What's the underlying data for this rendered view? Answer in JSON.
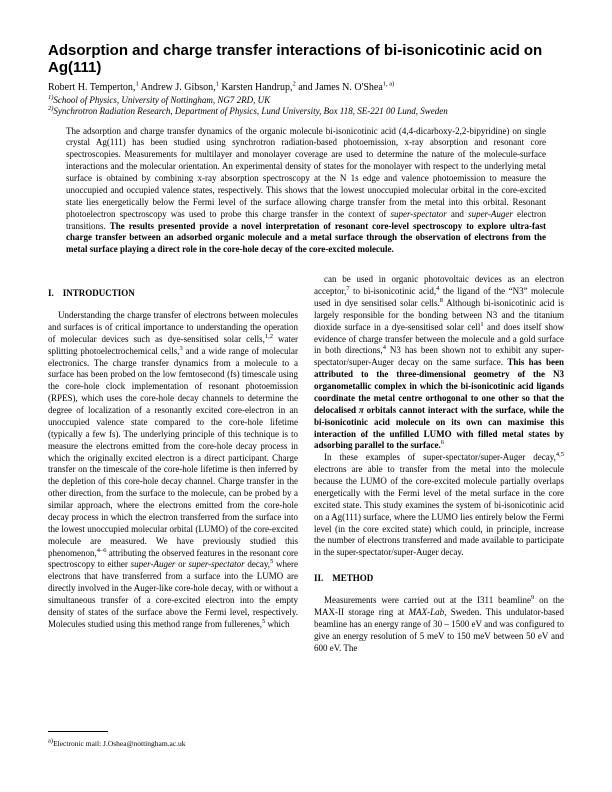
{
  "title": "Adsorption and charge transfer interactions of bi-isonicotinic acid on Ag(111)",
  "authors_html": "Robert H. Temperton,<sup>1</sup> Andrew J. Gibson,<sup>1</sup> Karsten Handrup,<sup>2</sup> and James N. O'Shea<sup>1, a)</sup>",
  "affil_html": "<sup>1)</sup>School of Physics, University of Nottingham, NG7 2RD, UK<br><sup>2)</sup>Synchrotron Radiation Research, Department of Physics, Lund University, Box 118, SE-221 00 Lund, Sweden",
  "abstract_html": "The adsorption and charge transfer dynamics of the organic molecule bi-isonicotinic acid (4,4-dicarboxy-2,2-bipyridine) on single crystal Ag(111) has been studied using synchrotron radiation-based photoemission, x-ray absorption and resonant core spectroscopies. Measurements for multilayer and monolayer coverage are used to determine the nature of the molecule-surface interactions and the molecular orientation. An experimental density of states for the monolayer with respect to the underlying metal surface is obtained by combining x-ray absorption spectroscopy at the N 1s edge and valence photoemission to measure the unoccupied and occupied valence states, respectively. This shows that the lowest unoccupied molecular orbital in the core-excited state lies energetically below the Fermi level of the surface allowing charge transfer from the metal into this orbital. Resonant photoelectron spectroscopy was used to probe this charge transfer in the context of <i>super-spectator</i> and <i>super-Auger</i> electron transitions. <b>The results presented provide a novel interpretation of resonant core-level spectroscopy to explore ultra-fast charge transfer between an adsorbed organic molecule and a metal surface through the observation of electrons from the metal surface playing a direct role in the core-hole decay of the core-excited molecule.</b>",
  "sec1_head": "I. INTRODUCTION",
  "col1_p1_html": "Understanding the charge transfer of electrons between molecules and surfaces is of critical importance to understanding the operation of molecular devices such as dye-sensitised solar cells,<sup>1,2</sup> water splitting photoelectrochemical cells,<sup>3</sup> and a wide range of molecular electronics. The charge transfer dynamics from a molecule to a surface has been probed on the low femtosecond (fs) timescale using the core-hole clock implementation of resonant photoemission (RPES), which uses the core-hole decay channels to determine the degree of localization of a resonantly excited core-electron in an unoccupied valence state compared to the core-hole lifetime (typically a few fs). The underlying principle of this technique is to measure the electrons emitted from the core-hole decay process in which the originally excited electron is a direct participant. Charge transfer on the timescale of the core-hole lifetime is then inferred by the depletion of this core-hole decay channel. Charge transfer in the other direction, from the surface to the molecule, can be probed by a similar approach, where the electrons emitted from the core-hole decay process in which the electron transferred from the surface into the lowest unoccupied molecular orbital (LUMO) of the core-excited molecule are measured. We have previously studied this phenomenon,<sup>4–6</sup> attributing the observed features in the resonant core spectroscopy to either <i>super-Auger</i> or <i>super-spectator</i> decay,<sup>5</sup> where electrons that have transferred from a surface into the LUMO are directly involved in the Auger-like core-hole decay, with or without a simultaneous transfer of a core-excited electron into the empty density of states of the surface above the Fermi level, respectively. Molecules studied using this method range from fullerenes,<sup>5</sup> which",
  "col2_p1_html": "can be used in organic photovoltaic devices as an electron acceptor,<sup>7</sup> to bi-isonicotinic acid,<sup>4</sup> the ligand of the “N3” molecule used in dye sensitised solar cells.<sup>8</sup> Although bi-isonicotinic acid is largely responsible for the bonding between N3 and the titanium dioxide surface in a dye-sensitised solar cell<sup>1</sup> and does itself show evidence of charge transfer between the molecule and a gold surface in both directions,<sup>4</sup> N3 has been shown not to exhibit any super-spectator/super-Auger decay on the same surface. <b>This has been attributed to the three-dimensional geometry of the N3 organometallic complex in which the bi-isonicotinic acid ligands coordinate the metal centre orthogonal to one other so that the delocalised <i>π</i> orbitals cannot interact with the surface, while the bi-isonicotinic acid molecule on its own can maximise this interaction of the unfilled LUMO with filled metal states by adsorbing parallel to the surface.</b><sup>6</sup>",
  "col2_p2_html": "In these examples of super-spectator/super-Auger decay,<sup>4,5</sup> electrons are able to transfer from the metal into the molecule because the LUMO of the core-excited molecule partially overlaps energetically with the Fermi level of the metal surface in the core excited state. This study examines the system of bi-isonicotinic acid on a Ag(111) surface, where the LUMO lies entirely below the Fermi level (in the core excited state) which could, in principle, increase the number of electrons transferred and made available to participate in the super-spectator/super-Auger decay.",
  "sec2_head": "II. METHOD",
  "col2_p3_html": "Measurements were carried out at the I311 beamline<sup>9</sup> on the MAX-II storage ring at <i>MAX-Lab</i>, Sweden. This undulator-based beamline has an energy range of 30 – 1500 eV and was configured to give an energy resolution of 5 meV to 150 meV between 50 eV and 600 eV. The",
  "footnote_html": "<sup>a)</sup>Electronic mail: J.Oshea@nottingham.ac.uk"
}
